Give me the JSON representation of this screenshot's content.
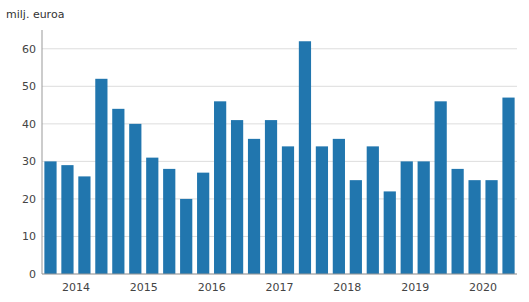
{
  "chart_data": {
    "type": "bar",
    "ylabel": "milj. euroa",
    "categories": [
      null,
      "2014",
      null,
      null,
      null,
      "2015",
      null,
      null,
      null,
      "2016",
      null,
      null,
      null,
      "2017",
      null,
      null,
      null,
      "2018",
      null,
      null,
      null,
      "2019",
      null,
      null,
      null,
      "2020",
      null,
      null
    ],
    "values": [
      30,
      29,
      26,
      52,
      44,
      40,
      31,
      28,
      20,
      27,
      46,
      41,
      36,
      41,
      34,
      62,
      34,
      36,
      25,
      34,
      22,
      30,
      30,
      46,
      28,
      25,
      25,
      47
    ],
    "color": "#2176ae",
    "ylim": [
      0,
      65
    ],
    "yticks": [
      0,
      10,
      20,
      30,
      40,
      50,
      60
    ],
    "grid": true
  }
}
